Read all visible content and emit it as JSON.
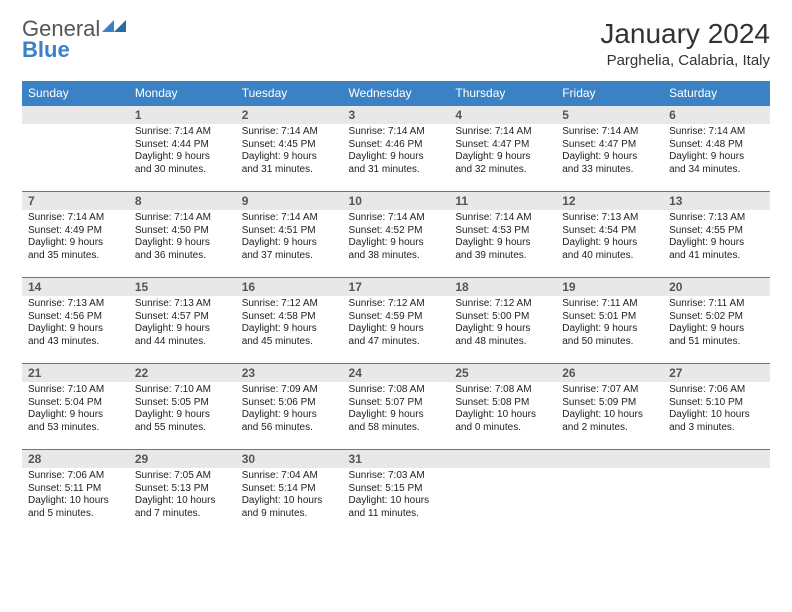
{
  "logo": {
    "text1": "General",
    "text2": "Blue"
  },
  "title": "January 2024",
  "location": "Parghelia, Calabria, Italy",
  "colors": {
    "header_bg": "#3b82c4",
    "header_fg": "#ffffff",
    "daynum_bg": "#e8e8e8",
    "body_bg": "#ffffff"
  },
  "font": {
    "title_size": 28,
    "location_size": 15,
    "header_size": 12,
    "body_size": 10
  },
  "weekdays": [
    "Sunday",
    "Monday",
    "Tuesday",
    "Wednesday",
    "Thursday",
    "Friday",
    "Saturday"
  ],
  "weeks": [
    [
      null,
      {
        "n": "1",
        "sr": "Sunrise: 7:14 AM",
        "ss": "Sunset: 4:44 PM",
        "d1": "Daylight: 9 hours",
        "d2": "and 30 minutes."
      },
      {
        "n": "2",
        "sr": "Sunrise: 7:14 AM",
        "ss": "Sunset: 4:45 PM",
        "d1": "Daylight: 9 hours",
        "d2": "and 31 minutes."
      },
      {
        "n": "3",
        "sr": "Sunrise: 7:14 AM",
        "ss": "Sunset: 4:46 PM",
        "d1": "Daylight: 9 hours",
        "d2": "and 31 minutes."
      },
      {
        "n": "4",
        "sr": "Sunrise: 7:14 AM",
        "ss": "Sunset: 4:47 PM",
        "d1": "Daylight: 9 hours",
        "d2": "and 32 minutes."
      },
      {
        "n": "5",
        "sr": "Sunrise: 7:14 AM",
        "ss": "Sunset: 4:47 PM",
        "d1": "Daylight: 9 hours",
        "d2": "and 33 minutes."
      },
      {
        "n": "6",
        "sr": "Sunrise: 7:14 AM",
        "ss": "Sunset: 4:48 PM",
        "d1": "Daylight: 9 hours",
        "d2": "and 34 minutes."
      }
    ],
    [
      {
        "n": "7",
        "sr": "Sunrise: 7:14 AM",
        "ss": "Sunset: 4:49 PM",
        "d1": "Daylight: 9 hours",
        "d2": "and 35 minutes."
      },
      {
        "n": "8",
        "sr": "Sunrise: 7:14 AM",
        "ss": "Sunset: 4:50 PM",
        "d1": "Daylight: 9 hours",
        "d2": "and 36 minutes."
      },
      {
        "n": "9",
        "sr": "Sunrise: 7:14 AM",
        "ss": "Sunset: 4:51 PM",
        "d1": "Daylight: 9 hours",
        "d2": "and 37 minutes."
      },
      {
        "n": "10",
        "sr": "Sunrise: 7:14 AM",
        "ss": "Sunset: 4:52 PM",
        "d1": "Daylight: 9 hours",
        "d2": "and 38 minutes."
      },
      {
        "n": "11",
        "sr": "Sunrise: 7:14 AM",
        "ss": "Sunset: 4:53 PM",
        "d1": "Daylight: 9 hours",
        "d2": "and 39 minutes."
      },
      {
        "n": "12",
        "sr": "Sunrise: 7:13 AM",
        "ss": "Sunset: 4:54 PM",
        "d1": "Daylight: 9 hours",
        "d2": "and 40 minutes."
      },
      {
        "n": "13",
        "sr": "Sunrise: 7:13 AM",
        "ss": "Sunset: 4:55 PM",
        "d1": "Daylight: 9 hours",
        "d2": "and 41 minutes."
      }
    ],
    [
      {
        "n": "14",
        "sr": "Sunrise: 7:13 AM",
        "ss": "Sunset: 4:56 PM",
        "d1": "Daylight: 9 hours",
        "d2": "and 43 minutes."
      },
      {
        "n": "15",
        "sr": "Sunrise: 7:13 AM",
        "ss": "Sunset: 4:57 PM",
        "d1": "Daylight: 9 hours",
        "d2": "and 44 minutes."
      },
      {
        "n": "16",
        "sr": "Sunrise: 7:12 AM",
        "ss": "Sunset: 4:58 PM",
        "d1": "Daylight: 9 hours",
        "d2": "and 45 minutes."
      },
      {
        "n": "17",
        "sr": "Sunrise: 7:12 AM",
        "ss": "Sunset: 4:59 PM",
        "d1": "Daylight: 9 hours",
        "d2": "and 47 minutes."
      },
      {
        "n": "18",
        "sr": "Sunrise: 7:12 AM",
        "ss": "Sunset: 5:00 PM",
        "d1": "Daylight: 9 hours",
        "d2": "and 48 minutes."
      },
      {
        "n": "19",
        "sr": "Sunrise: 7:11 AM",
        "ss": "Sunset: 5:01 PM",
        "d1": "Daylight: 9 hours",
        "d2": "and 50 minutes."
      },
      {
        "n": "20",
        "sr": "Sunrise: 7:11 AM",
        "ss": "Sunset: 5:02 PM",
        "d1": "Daylight: 9 hours",
        "d2": "and 51 minutes."
      }
    ],
    [
      {
        "n": "21",
        "sr": "Sunrise: 7:10 AM",
        "ss": "Sunset: 5:04 PM",
        "d1": "Daylight: 9 hours",
        "d2": "and 53 minutes."
      },
      {
        "n": "22",
        "sr": "Sunrise: 7:10 AM",
        "ss": "Sunset: 5:05 PM",
        "d1": "Daylight: 9 hours",
        "d2": "and 55 minutes."
      },
      {
        "n": "23",
        "sr": "Sunrise: 7:09 AM",
        "ss": "Sunset: 5:06 PM",
        "d1": "Daylight: 9 hours",
        "d2": "and 56 minutes."
      },
      {
        "n": "24",
        "sr": "Sunrise: 7:08 AM",
        "ss": "Sunset: 5:07 PM",
        "d1": "Daylight: 9 hours",
        "d2": "and 58 minutes."
      },
      {
        "n": "25",
        "sr": "Sunrise: 7:08 AM",
        "ss": "Sunset: 5:08 PM",
        "d1": "Daylight: 10 hours",
        "d2": "and 0 minutes."
      },
      {
        "n": "26",
        "sr": "Sunrise: 7:07 AM",
        "ss": "Sunset: 5:09 PM",
        "d1": "Daylight: 10 hours",
        "d2": "and 2 minutes."
      },
      {
        "n": "27",
        "sr": "Sunrise: 7:06 AM",
        "ss": "Sunset: 5:10 PM",
        "d1": "Daylight: 10 hours",
        "d2": "and 3 minutes."
      }
    ],
    [
      {
        "n": "28",
        "sr": "Sunrise: 7:06 AM",
        "ss": "Sunset: 5:11 PM",
        "d1": "Daylight: 10 hours",
        "d2": "and 5 minutes."
      },
      {
        "n": "29",
        "sr": "Sunrise: 7:05 AM",
        "ss": "Sunset: 5:13 PM",
        "d1": "Daylight: 10 hours",
        "d2": "and 7 minutes."
      },
      {
        "n": "30",
        "sr": "Sunrise: 7:04 AM",
        "ss": "Sunset: 5:14 PM",
        "d1": "Daylight: 10 hours",
        "d2": "and 9 minutes."
      },
      {
        "n": "31",
        "sr": "Sunrise: 7:03 AM",
        "ss": "Sunset: 5:15 PM",
        "d1": "Daylight: 10 hours",
        "d2": "and 11 minutes."
      },
      null,
      null,
      null
    ]
  ]
}
